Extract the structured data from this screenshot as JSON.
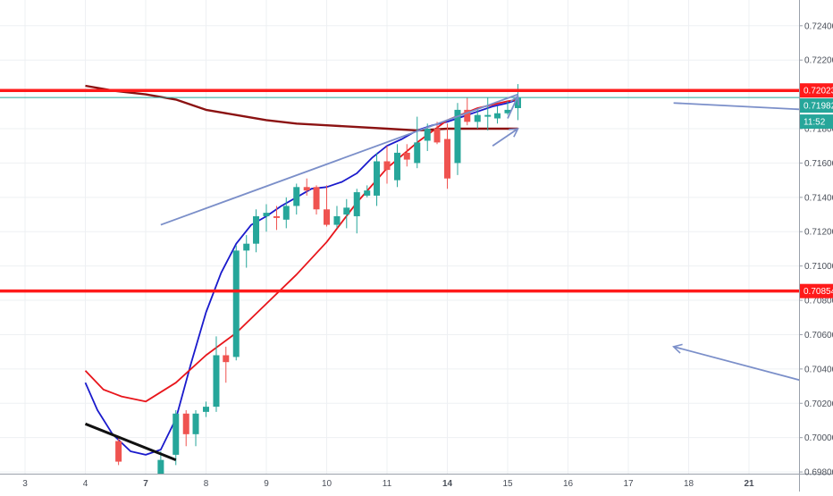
{
  "colors": {
    "background": "#ffffff",
    "grid": "#eef0f3",
    "up": "#26a69a",
    "down": "#ef5350",
    "support_resistance": "#ff1a1a",
    "last_price_line": "#26a69a",
    "ema_fast": "#1a1acc",
    "ema_mid": "#e8151b",
    "ema_slow": "#8b1212",
    "drawing": "#7b8fc9",
    "trend_black": "#111111",
    "axis_text": "#4a4f59",
    "label_text": "#ffffff"
  },
  "chart_data": {
    "type": "candlestick",
    "x_axis": {
      "tick_labels": [
        "3",
        "4",
        "7",
        "8",
        "9",
        "10",
        "11",
        "14",
        "15",
        "16",
        "17",
        "18",
        "21"
      ],
      "bold_labels": [
        "7",
        "14",
        "21"
      ]
    },
    "y_axis": {
      "side": "right",
      "range": [
        0.6979,
        0.7255
      ],
      "tick_values": [
        0.724,
        0.722,
        0.718,
        0.716,
        0.714,
        0.712,
        0.71,
        0.708,
        0.706,
        0.704,
        0.702,
        0.7,
        0.698
      ],
      "tick_labels": [
        "0.72400",
        "0.72200",
        "0.71800",
        "0.71600",
        "0.71400",
        "0.71200",
        "0.71000",
        "0.70800",
        "0.70600",
        "0.70400",
        "0.70200",
        "0.70000",
        "0.69800"
      ]
    },
    "grid": true,
    "candles": [
      {
        "x": 2.55,
        "o": 0.6998,
        "h": 0.7,
        "l": 0.6984,
        "c": 0.6986
      },
      {
        "x": 3.25,
        "o": 0.6978,
        "h": 0.6992,
        "l": 0.6975,
        "c": 0.6987
      },
      {
        "x": 3.5,
        "o": 0.699,
        "h": 0.7016,
        "l": 0.6984,
        "c": 0.7014
      },
      {
        "x": 3.67,
        "o": 0.7014,
        "h": 0.7016,
        "l": 0.6995,
        "c": 0.7002
      },
      {
        "x": 3.83,
        "o": 0.7002,
        "h": 0.7016,
        "l": 0.6995,
        "c": 0.7014
      },
      {
        "x": 4.0,
        "o": 0.7015,
        "h": 0.7021,
        "l": 0.7012,
        "c": 0.7018
      },
      {
        "x": 4.17,
        "o": 0.7018,
        "h": 0.7059,
        "l": 0.7015,
        "c": 0.7048
      },
      {
        "x": 4.33,
        "o": 0.7048,
        "h": 0.7053,
        "l": 0.7032,
        "c": 0.7044
      },
      {
        "x": 4.5,
        "o": 0.7047,
        "h": 0.7112,
        "l": 0.7045,
        "c": 0.7109
      },
      {
        "x": 4.67,
        "o": 0.7109,
        "h": 0.7118,
        "l": 0.7099,
        "c": 0.7113
      },
      {
        "x": 4.83,
        "o": 0.7113,
        "h": 0.7133,
        "l": 0.7108,
        "c": 0.7129
      },
      {
        "x": 5.0,
        "o": 0.7129,
        "h": 0.7136,
        "l": 0.712,
        "c": 0.7131
      },
      {
        "x": 5.17,
        "o": 0.7129,
        "h": 0.7135,
        "l": 0.7121,
        "c": 0.7128
      },
      {
        "x": 5.33,
        "o": 0.7127,
        "h": 0.714,
        "l": 0.7122,
        "c": 0.7135
      },
      {
        "x": 5.5,
        "o": 0.7135,
        "h": 0.7148,
        "l": 0.713,
        "c": 0.7146
      },
      {
        "x": 5.67,
        "o": 0.7146,
        "h": 0.7151,
        "l": 0.7141,
        "c": 0.7144
      },
      {
        "x": 5.83,
        "o": 0.7146,
        "h": 0.7147,
        "l": 0.713,
        "c": 0.7133
      },
      {
        "x": 6.0,
        "o": 0.7133,
        "h": 0.7147,
        "l": 0.7123,
        "c": 0.7124
      },
      {
        "x": 6.17,
        "o": 0.7124,
        "h": 0.7135,
        "l": 0.7122,
        "c": 0.7129
      },
      {
        "x": 6.33,
        "o": 0.713,
        "h": 0.7139,
        "l": 0.7122,
        "c": 0.7134
      },
      {
        "x": 6.5,
        "o": 0.7129,
        "h": 0.7145,
        "l": 0.7119,
        "c": 0.7143
      },
      {
        "x": 6.67,
        "o": 0.7141,
        "h": 0.7147,
        "l": 0.714,
        "c": 0.7144
      },
      {
        "x": 6.83,
        "o": 0.7141,
        "h": 0.7166,
        "l": 0.7135,
        "c": 0.7161
      },
      {
        "x": 7.0,
        "o": 0.7161,
        "h": 0.717,
        "l": 0.7148,
        "c": 0.7156
      },
      {
        "x": 7.17,
        "o": 0.715,
        "h": 0.7171,
        "l": 0.7146,
        "c": 0.7166
      },
      {
        "x": 7.33,
        "o": 0.7166,
        "h": 0.7171,
        "l": 0.7158,
        "c": 0.7162
      },
      {
        "x": 7.5,
        "o": 0.716,
        "h": 0.7187,
        "l": 0.7157,
        "c": 0.7172
      },
      {
        "x": 7.67,
        "o": 0.7173,
        "h": 0.7183,
        "l": 0.7167,
        "c": 0.718
      },
      {
        "x": 7.83,
        "o": 0.718,
        "h": 0.7184,
        "l": 0.7171,
        "c": 0.7172
      },
      {
        "x": 8.0,
        "o": 0.7174,
        "h": 0.7183,
        "l": 0.7145,
        "c": 0.7151
      },
      {
        "x": 8.17,
        "o": 0.716,
        "h": 0.7195,
        "l": 0.7153,
        "c": 0.7191
      },
      {
        "x": 8.33,
        "o": 0.7191,
        "h": 0.7198,
        "l": 0.7182,
        "c": 0.7184
      },
      {
        "x": 8.5,
        "o": 0.7184,
        "h": 0.7191,
        "l": 0.718,
        "c": 0.7188
      },
      {
        "x": 8.67,
        "o": 0.7187,
        "h": 0.7198,
        "l": 0.7179,
        "c": 0.7188
      },
      {
        "x": 8.83,
        "o": 0.7186,
        "h": 0.7193,
        "l": 0.7183,
        "c": 0.7189
      },
      {
        "x": 9.0,
        "o": 0.7189,
        "h": 0.7196,
        "l": 0.7188,
        "c": 0.7191
      },
      {
        "x": 9.17,
        "o": 0.7192,
        "h": 0.7206,
        "l": 0.7185,
        "c": 0.7198
      }
    ],
    "lines": [
      {
        "name": "",
        "color_key": "ema_fast",
        "points": [
          [
            2.0,
            0.7032
          ],
          [
            2.2,
            0.7016
          ],
          [
            2.45,
            0.7002
          ],
          [
            2.75,
            0.6992
          ],
          [
            3.0,
            0.699
          ],
          [
            3.25,
            0.6993
          ],
          [
            3.5,
            0.7011
          ],
          [
            3.75,
            0.7043
          ],
          [
            4.0,
            0.7073
          ],
          [
            4.25,
            0.7096
          ],
          [
            4.5,
            0.7113
          ],
          [
            4.75,
            0.7124
          ],
          [
            5.0,
            0.7129
          ],
          [
            5.25,
            0.7135
          ],
          [
            5.5,
            0.714
          ],
          [
            5.75,
            0.7145
          ],
          [
            6.0,
            0.7146
          ],
          [
            6.25,
            0.7149
          ],
          [
            6.5,
            0.7154
          ],
          [
            6.75,
            0.7163
          ],
          [
            7.0,
            0.717
          ],
          [
            7.25,
            0.7174
          ],
          [
            7.5,
            0.7179
          ],
          [
            7.75,
            0.7182
          ],
          [
            8.0,
            0.7184
          ],
          [
            8.25,
            0.7187
          ],
          [
            8.5,
            0.719
          ],
          [
            8.75,
            0.7193
          ],
          [
            9.0,
            0.7195
          ],
          [
            9.17,
            0.7197
          ]
        ]
      },
      {
        "name": "",
        "color_key": "ema_mid",
        "points": [
          [
            2.0,
            0.7039
          ],
          [
            2.3,
            0.7028
          ],
          [
            2.6,
            0.7024
          ],
          [
            3.0,
            0.7021
          ],
          [
            3.5,
            0.7032
          ],
          [
            4.0,
            0.7048
          ],
          [
            4.5,
            0.7061
          ],
          [
            5.0,
            0.7078
          ],
          [
            5.5,
            0.7095
          ],
          [
            6.0,
            0.7114
          ],
          [
            6.5,
            0.7137
          ],
          [
            7.0,
            0.7157
          ],
          [
            7.5,
            0.7172
          ],
          [
            8.0,
            0.7185
          ],
          [
            8.5,
            0.7192
          ],
          [
            9.0,
            0.7196
          ],
          [
            9.17,
            0.7197
          ]
        ]
      },
      {
        "name": "",
        "color_key": "ema_slow",
        "points": [
          [
            2.0,
            0.7205
          ],
          [
            2.5,
            0.7202
          ],
          [
            3.0,
            0.72
          ],
          [
            3.5,
            0.7197
          ],
          [
            4.0,
            0.7191
          ],
          [
            4.5,
            0.7188
          ],
          [
            5.0,
            0.7185
          ],
          [
            5.5,
            0.7183
          ],
          [
            6.0,
            0.7182
          ],
          [
            6.5,
            0.7181
          ],
          [
            7.0,
            0.718
          ],
          [
            7.5,
            0.7179
          ],
          [
            8.0,
            0.718
          ],
          [
            8.5,
            0.718
          ],
          [
            9.0,
            0.718
          ],
          [
            9.17,
            0.718
          ]
        ]
      }
    ],
    "horizontal_levels": [
      {
        "value": 0.72023,
        "label": "0.72023"
      },
      {
        "value": 0.70854,
        "label": "0.70854"
      }
    ],
    "last_price": {
      "value": 0.71982,
      "label": "0.71982",
      "countdown": "11:52"
    },
    "drawings": [
      {
        "kind": "line",
        "color_key": "drawing",
        "from": [
          3.25,
          0.7124
        ],
        "to": [
          9.17,
          0.72
        ]
      },
      {
        "kind": "arrow",
        "color_key": "drawing",
        "from": [
          9.0,
          0.7186
        ],
        "to": [
          9.17,
          0.7199
        ]
      },
      {
        "kind": "arrow",
        "color_key": "drawing",
        "from": [
          8.75,
          0.717
        ],
        "to": [
          9.17,
          0.718
        ]
      },
      {
        "kind": "line",
        "color_key": "drawing",
        "from": [
          11.75,
          0.7195
        ],
        "to": [
          14.0,
          0.7191
        ]
      },
      {
        "kind": "arrow",
        "color_key": "drawing",
        "from": [
          14.0,
          0.7032
        ],
        "to": [
          11.75,
          0.7053
        ]
      },
      {
        "kind": "line",
        "color_key": "trend_black",
        "from": [
          2.0,
          0.7008
        ],
        "to": [
          3.5,
          0.6987
        ]
      }
    ]
  }
}
